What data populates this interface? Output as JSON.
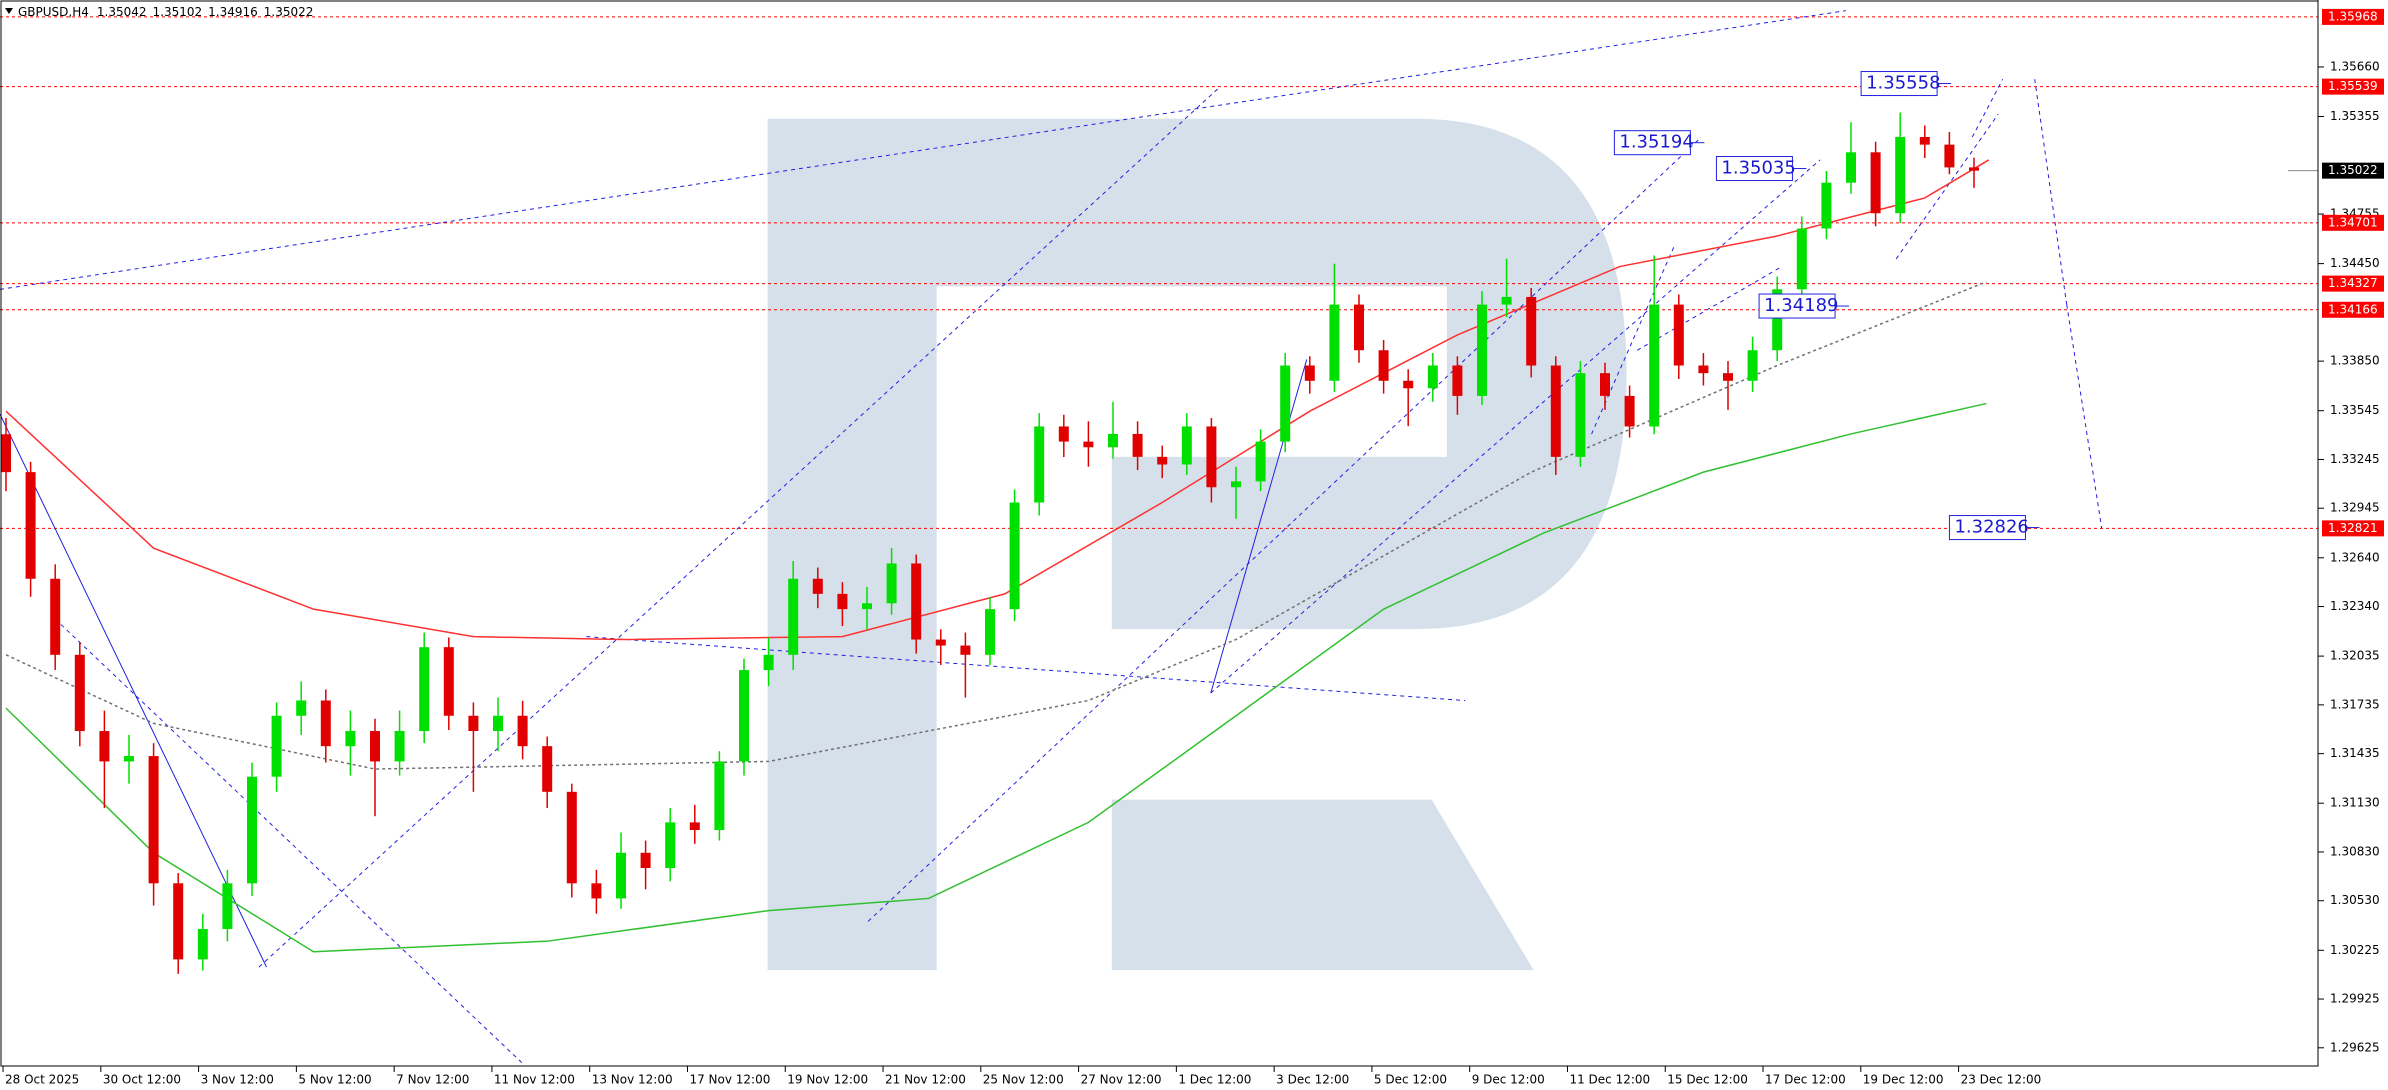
{
  "chart_data": {
    "type": "candlestick",
    "symbol": "GBPUSD,H4",
    "open": [
      1.334,
      1.33167,
      1.32511,
      1.32043,
      1.31574,
      1.31387,
      1.3142,
      1.30637,
      1.30169,
      1.30356,
      1.30637,
      1.31293,
      1.31668,
      1.31762,
      1.31481,
      1.31574,
      1.31387,
      1.31574,
      1.3209,
      1.31668,
      1.31574,
      1.31668,
      1.31481,
      1.312,
      1.30637,
      1.30544,
      1.30825,
      1.30731,
      1.31012,
      1.30965,
      1.31387,
      1.31949,
      1.32043,
      1.32511,
      1.32418,
      1.32324,
      1.3236,
      1.32605,
      1.32137,
      1.321,
      1.32043,
      1.32324,
      1.3298,
      1.33448,
      1.33355,
      1.3332,
      1.33402,
      1.33261,
      1.33214,
      1.33448,
      1.33074,
      1.3311,
      1.33355,
      1.33823,
      1.33729,
      1.34198,
      1.33917,
      1.33729,
      1.33683,
      1.33823,
      1.33636,
      1.34198,
      1.34245,
      1.33823,
      1.33261,
      1.33776,
      1.33636,
      1.33448,
      1.34198,
      1.33823,
      1.33776,
      1.33729,
      1.33917,
      1.34292,
      1.34666,
      1.34948,
      1.35135,
      1.3476,
      1.35229,
      1.35182,
      1.35042
    ],
    "high": [
      1.335,
      1.3323,
      1.326,
      1.3212,
      1.317,
      1.3155,
      1.315,
      1.307,
      1.3045,
      1.3072,
      1.3138,
      1.3175,
      1.3188,
      1.3183,
      1.317,
      1.3165,
      1.317,
      1.3218,
      1.3215,
      1.3175,
      1.3178,
      1.3176,
      1.3154,
      1.3125,
      1.3072,
      1.3095,
      1.309,
      1.311,
      1.3112,
      1.3145,
      1.3202,
      1.3215,
      1.3262,
      1.3258,
      1.3249,
      1.3246,
      1.327,
      1.3266,
      1.322,
      1.3218,
      1.324,
      1.3306,
      1.3353,
      1.3352,
      1.3348,
      1.336,
      1.3348,
      1.3333,
      1.3353,
      1.335,
      1.332,
      1.3343,
      1.339,
      1.3388,
      1.3445,
      1.3426,
      1.3398,
      1.338,
      1.339,
      1.3388,
      1.3428,
      1.3448,
      1.343,
      1.3388,
      1.3385,
      1.3384,
      1.337,
      1.345,
      1.3426,
      1.339,
      1.3385,
      1.34,
      1.3437,
      1.3474,
      1.3502,
      1.3532,
      1.352,
      1.3538,
      1.353,
      1.3526,
      1.35102
    ],
    "low": [
      1.3305,
      1.324,
      1.3195,
      1.3148,
      1.311,
      1.3125,
      1.305,
      1.3008,
      1.301,
      1.3028,
      1.3056,
      1.312,
      1.3155,
      1.3138,
      1.313,
      1.3105,
      1.313,
      1.315,
      1.3158,
      1.312,
      1.3145,
      1.314,
      1.311,
      1.3055,
      1.3045,
      1.3048,
      1.306,
      1.3065,
      1.3088,
      1.309,
      1.313,
      1.3185,
      1.3195,
      1.3233,
      1.3222,
      1.322,
      1.3229,
      1.3205,
      1.3198,
      1.3178,
      1.3198,
      1.3225,
      1.329,
      1.3326,
      1.332,
      1.3325,
      1.3318,
      1.3313,
      1.3315,
      1.3298,
      1.3288,
      1.3305,
      1.3329,
      1.3365,
      1.3366,
      1.3384,
      1.3365,
      1.3345,
      1.336,
      1.3352,
      1.3358,
      1.3412,
      1.3375,
      1.3315,
      1.332,
      1.3355,
      1.3338,
      1.334,
      1.3374,
      1.337,
      1.3355,
      1.3366,
      1.3385,
      1.3422,
      1.346,
      1.3488,
      1.3468,
      1.347,
      1.351,
      1.35,
      1.34916
    ],
    "close": [
      1.33167,
      1.32511,
      1.32043,
      1.31574,
      1.31387,
      1.3142,
      1.30637,
      1.30169,
      1.30356,
      1.30637,
      1.31293,
      1.31668,
      1.31762,
      1.31481,
      1.31574,
      1.31387,
      1.31574,
      1.3209,
      1.31668,
      1.31574,
      1.31668,
      1.31481,
      1.312,
      1.30637,
      1.30544,
      1.30825,
      1.30731,
      1.31012,
      1.30965,
      1.31387,
      1.31949,
      1.32043,
      1.32511,
      1.32418,
      1.32324,
      1.3236,
      1.32605,
      1.32137,
      1.321,
      1.32043,
      1.32324,
      1.3298,
      1.33448,
      1.33355,
      1.3332,
      1.33402,
      1.33261,
      1.33214,
      1.33448,
      1.33074,
      1.3311,
      1.33355,
      1.33823,
      1.33729,
      1.34198,
      1.33917,
      1.33729,
      1.33683,
      1.33823,
      1.33636,
      1.34198,
      1.34245,
      1.33823,
      1.33261,
      1.33776,
      1.33636,
      1.33448,
      1.34198,
      1.33823,
      1.33776,
      1.33729,
      1.33917,
      1.34292,
      1.34666,
      1.34948,
      1.35135,
      1.3476,
      1.35229,
      1.35182,
      1.35042,
      1.35022
    ],
    "up_color": "#00e000",
    "down_color": "#e00000",
    "lines": [
      {
        "color": "#ff3030",
        "style": "solid",
        "x": [
          0,
          6,
          12.5,
          19,
          25,
          34,
          40.6,
          47,
          53,
          59,
          65.6,
          72,
          78,
          80.6
        ],
        "values": [
          1.33542,
          1.32699,
          1.32324,
          1.32155,
          1.32137,
          1.32155,
          1.32418,
          1.3298,
          1.33542,
          1.34011,
          1.34432,
          1.3462,
          1.34854,
          1.35088
        ]
      },
      {
        "color": "#30c030",
        "style": "solid",
        "x": [
          0,
          6,
          12.5,
          22,
          31,
          37.5,
          44,
          50,
          56,
          62.5,
          69,
          75,
          80.5
        ],
        "values": [
          1.31715,
          1.30825,
          1.30216,
          1.30281,
          1.30469,
          1.30544,
          1.31012,
          1.31668,
          1.32324,
          1.32792,
          1.33167,
          1.33402,
          1.33589
        ]
      },
      {
        "color": "#707070",
        "style": "dotted",
        "x": [
          0,
          6,
          15,
          31,
          44,
          50,
          62,
          72,
          80.5
        ],
        "values": [
          1.32043,
          1.31621,
          1.3134,
          1.31387,
          1.31762,
          1.32137,
          1.33167,
          1.33823,
          1.34338
        ]
      }
    ],
    "levels": {
      "color": "#ff0000",
      "values": [
        1.35968,
        1.35539,
        1.34701,
        1.34327,
        1.34166,
        1.32821
      ]
    },
    "annotations": [
      "1.35558",
      "1.35194",
      "1.35035",
      "1.34189",
      "1.32826"
    ],
    "ylim": [
      1.29513,
      1.36072
    ],
    "yticks": [
      {
        "value": 1.3566,
        "label": "1.35660"
      },
      1.35355,
      1.34755,
      {
        "value": 1.3445,
        "label": "1.34450"
      },
      {
        "value": 1.3385,
        "label": "1.33850"
      },
      1.33545,
      1.33245,
      1.32945,
      {
        "value": 1.3264,
        "label": "1.32640"
      },
      {
        "value": 1.3234,
        "label": "1.32340"
      },
      1.32035,
      1.31735,
      1.31435,
      {
        "value": 1.3113,
        "label": "1.31130"
      },
      {
        "value": 1.3083,
        "label": "1.30830"
      },
      {
        "value": 1.3053,
        "label": "1.30530"
      },
      1.30225,
      1.29925,
      1.29625
    ],
    "categories": [
      "28 Oct 2025",
      "30 Oct 12:00",
      "3 Nov 12:00",
      "5 Nov 12:00",
      "7 Nov 12:00",
      "11 Nov 12:00",
      "13 Nov 12:00",
      "17 Nov 12:00",
      "19 Nov 12:00",
      "21 Nov 12:00",
      "25 Nov 12:00",
      "27 Nov 12:00",
      "1 Dec 12:00",
      "3 Dec 12:00",
      "5 Dec 12:00",
      "9 Dec 12:00",
      "11 Dec 12:00",
      "15 Dec 12:00",
      "17 Dec 12:00",
      "19 Dec 12:00",
      "23 Dec 12:00"
    ]
  }
}
